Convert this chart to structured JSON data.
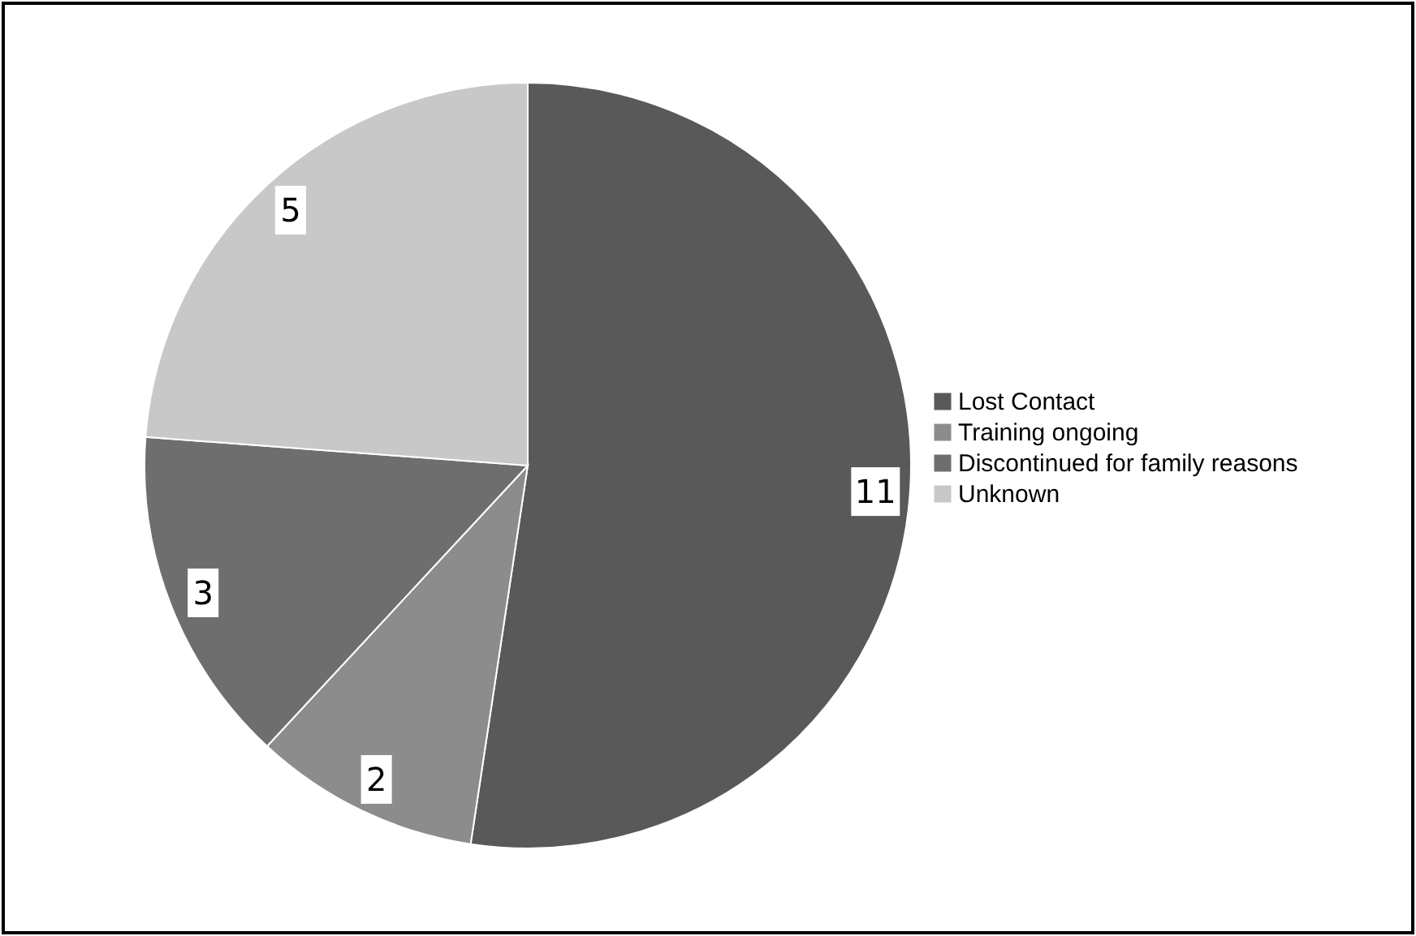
{
  "chart_data": {
    "type": "pie",
    "categories": [
      "Lost Contact",
      "Training ongoing",
      "Discontinued for family reasons",
      "Unknown"
    ],
    "values": [
      11,
      2,
      3,
      5
    ],
    "colors": [
      "#595959",
      "#8c8c8c",
      "#6e6e6e",
      "#c8c8c8"
    ],
    "data_labels": true,
    "legend": "right"
  }
}
